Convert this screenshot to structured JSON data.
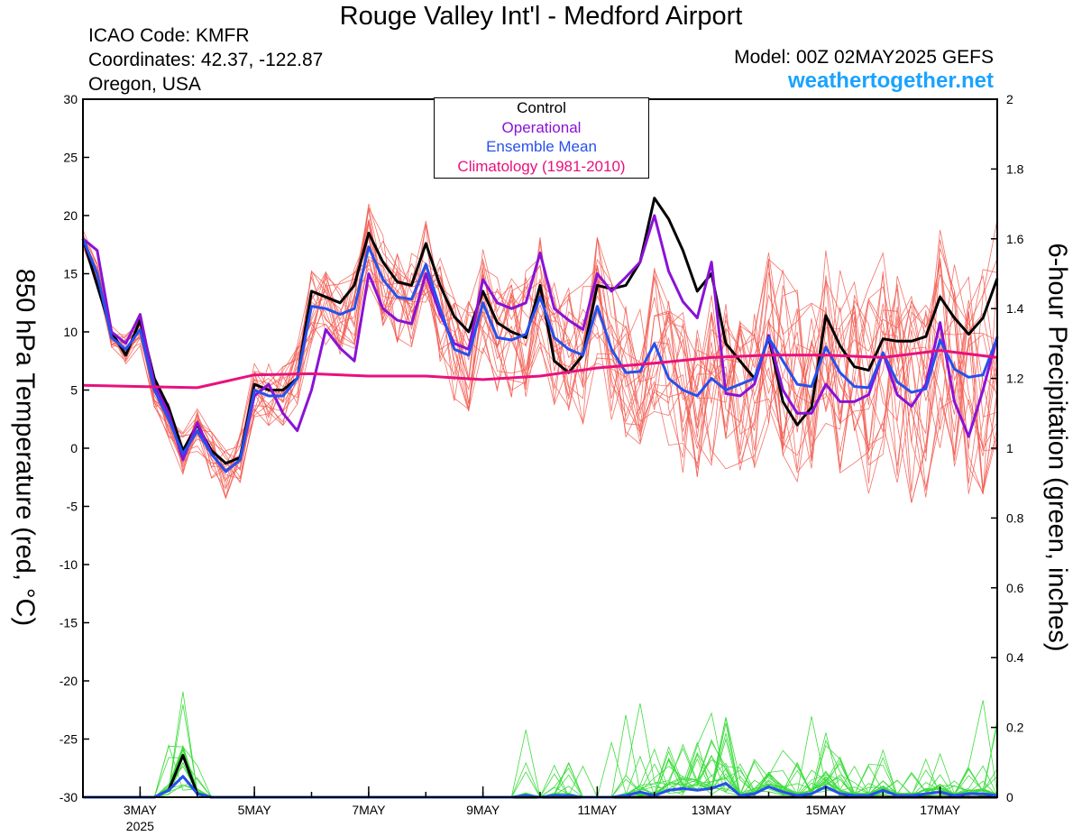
{
  "header": {
    "title": "Rouge Valley Int'l - Medford Airport",
    "icao": "ICAO Code: KMFR",
    "coordinates": "Coordinates: 42.37, -122.87",
    "region": "Oregon, USA",
    "model": "Model: 00Z 02MAY2025 GEFS",
    "website": "weathertogether.net"
  },
  "legend": {
    "items": [
      {
        "label": "Control",
        "color": "#000000"
      },
      {
        "label": "Operational",
        "color": "#8a12d6"
      },
      {
        "label": "Ensemble Mean",
        "color": "#2650ee"
      },
      {
        "label": "Climatology (1981-2010)",
        "color": "#e8117d"
      }
    ]
  },
  "chart_data": {
    "type": "line",
    "title": "Rouge Valley Int'l - Medford Airport",
    "xlabel": "",
    "ylabel_left": "850 hPa Temperature (red, °C)",
    "ylabel_right": "6-hour Precipitation (green, inches)",
    "ylim_left": [
      -30,
      30
    ],
    "ylim_right": [
      0,
      2
    ],
    "yticks_left": [
      "30",
      "25",
      "20",
      "15",
      "10",
      "5",
      "0",
      "-5",
      "-10",
      "-15",
      "-20",
      "-25",
      "-30"
    ],
    "yticks_right": [
      "2",
      "1.8",
      "1.6",
      "1.4",
      "1.2",
      "1",
      "0.8",
      "0.6",
      "0.4",
      "0.2",
      "0"
    ],
    "x_unit": "days after 00Z 2 May 2025, 6-hourly steps",
    "xlim_days": [
      0,
      16
    ],
    "xticks": [
      {
        "day": 1,
        "label": "3MAY",
        "sub": "2025"
      },
      {
        "day": 3,
        "label": "5MAY"
      },
      {
        "day": 5,
        "label": "7MAY"
      },
      {
        "day": 7,
        "label": "9MAY"
      },
      {
        "day": 9,
        "label": "11MAY"
      },
      {
        "day": 11,
        "label": "13MAY"
      },
      {
        "day": 13,
        "label": "15MAY"
      },
      {
        "day": 15,
        "label": "17MAY"
      }
    ],
    "grid": false,
    "series": [
      {
        "name": "Control",
        "axis": "left",
        "color": "#000000",
        "values": [
          18,
          14,
          10,
          8,
          11,
          6,
          3.5,
          -0.2,
          2,
          -0.2,
          -1.3,
          -0.8,
          5.5,
          5,
          5,
          6,
          13.5,
          13,
          12.5,
          14,
          18.5,
          16,
          14.3,
          14,
          17.6,
          14,
          11.3,
          10,
          13.5,
          10.8,
          10,
          9.5,
          14,
          7.5,
          6.5,
          8,
          14,
          13.7,
          14,
          16,
          21.5,
          19.7,
          17,
          13.5,
          15,
          9,
          7.5,
          6,
          9.5,
          4,
          2,
          3.5,
          11.4,
          8.8,
          7,
          6.7,
          9.4,
          9.2,
          9.2,
          9.6,
          13,
          11.2,
          9.8,
          11.2,
          14.6
        ]
      },
      {
        "name": "Operational",
        "axis": "left",
        "color": "#8a12d6",
        "values": [
          18,
          17,
          10,
          9,
          11.5,
          5.5,
          3,
          -1,
          2.2,
          -0.5,
          -2,
          -1,
          4.5,
          5.5,
          3,
          1.5,
          5,
          10.2,
          8.6,
          7.5,
          15,
          12,
          11,
          10.7,
          15,
          11.5,
          9,
          8.5,
          14.5,
          12.5,
          12,
          12.5,
          16.8,
          12,
          11,
          10.2,
          15,
          13.5,
          14.7,
          16,
          20,
          15.2,
          12.6,
          11.2,
          16,
          4.7,
          4.5,
          5.5,
          9.7,
          5,
          3,
          3,
          5.5,
          4,
          4,
          4.6,
          8.2,
          4.6,
          3.6,
          5.5,
          10.8,
          4,
          1,
          5,
          9.6
        ]
      },
      {
        "name": "Ensemble Mean",
        "axis": "left",
        "color": "#2650ee",
        "values": [
          18,
          15,
          9.5,
          8.5,
          10.2,
          5,
          2.5,
          -0.5,
          1.5,
          -0.5,
          -2,
          -1,
          5,
          4.5,
          4.5,
          6,
          12.2,
          12,
          11.5,
          12,
          17.3,
          14.5,
          13,
          12.8,
          15.8,
          12,
          8.5,
          8,
          12.5,
          9.5,
          9.3,
          9.8,
          13,
          9.5,
          8.5,
          8,
          12.2,
          8.5,
          6.5,
          6.6,
          9,
          6,
          5,
          4.5,
          6,
          5,
          5.5,
          6,
          9.5,
          7.5,
          5.5,
          5.3,
          8.7,
          6.5,
          5.3,
          5.2,
          8.2,
          5.7,
          4.8,
          5.1,
          9.3,
          6.8,
          6.1,
          6.3,
          9.5
        ]
      },
      {
        "name": "Climatology (1981-2010)",
        "axis": "left",
        "color": "#e8117d",
        "days": [
          0,
          1,
          2,
          3,
          4,
          5,
          6,
          7,
          8,
          9,
          10,
          11,
          12,
          13,
          14,
          15,
          16
        ],
        "values": [
          5.4,
          5.3,
          5.2,
          6.3,
          6.4,
          6.2,
          6.2,
          5.9,
          6.2,
          6.9,
          7.3,
          7.8,
          8.0,
          8.0,
          7.8,
          8.4,
          7.8
        ]
      },
      {
        "name": "Control",
        "axis": "right",
        "color": "#000000",
        "values": [
          0,
          0,
          0,
          0,
          0,
          0,
          0.02,
          0.12,
          0.01,
          0,
          0,
          0,
          0,
          0,
          0,
          0,
          0,
          0,
          0,
          0,
          0,
          0,
          0,
          0,
          0,
          0,
          0,
          0,
          0,
          0,
          0,
          0,
          0,
          0,
          0,
          0,
          0,
          0,
          0,
          0,
          0,
          0,
          0,
          0,
          0,
          0,
          0,
          0,
          0,
          0,
          0,
          0,
          0,
          0,
          0,
          0,
          0,
          0,
          0,
          0,
          0,
          0,
          0,
          0,
          0
        ]
      },
      {
        "name": "Ensemble Mean",
        "axis": "right",
        "color": "#2650ee",
        "values": [
          0,
          0,
          0,
          0,
          0,
          0,
          0.02,
          0.06,
          0.01,
          0,
          0,
          0,
          0,
          0,
          0,
          0,
          0,
          0,
          0,
          0,
          0,
          0,
          0,
          0,
          0,
          0,
          0,
          0,
          0,
          0,
          0,
          0.005,
          0,
          0.005,
          0.005,
          0,
          0,
          0,
          0.005,
          0.015,
          0.005,
          0.02,
          0.025,
          0.02,
          0.025,
          0.04,
          0.005,
          0.01,
          0.03,
          0.015,
          0.005,
          0.01,
          0.03,
          0.01,
          0.005,
          0.005,
          0.02,
          0.005,
          0.005,
          0.01,
          0.015,
          0.005,
          0.01,
          0.01,
          0.005
        ]
      }
    ]
  }
}
